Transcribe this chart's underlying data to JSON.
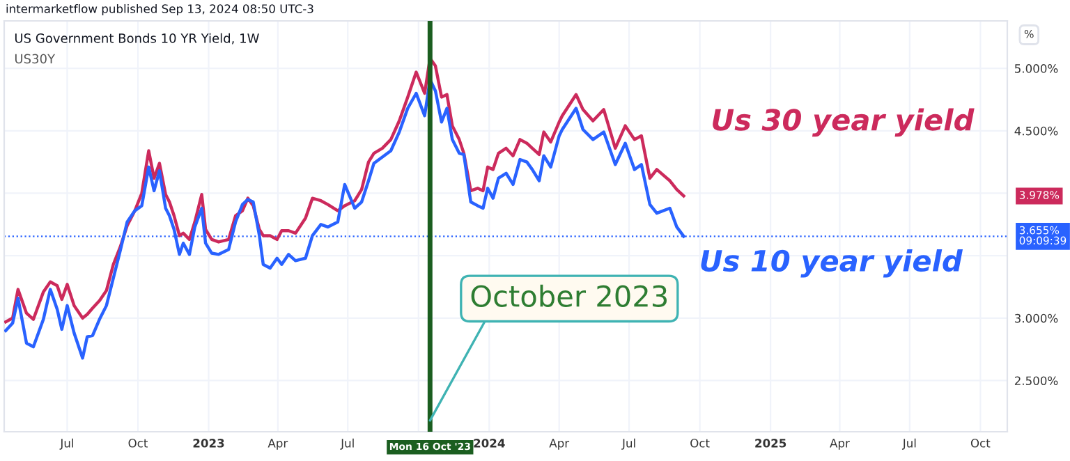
{
  "chart_data": {
    "type": "line",
    "title": "US Government Bonds 10 YR Yield, 1W",
    "subtitle": "US30Y",
    "x": [
      "2022-04-12",
      "2022-04-21",
      "2022-04-28",
      "2022-05-09",
      "2022-05-18",
      "2022-05-31",
      "2022-06-09",
      "2022-06-18",
      "2022-06-24",
      "2022-07-01",
      "2022-07-10",
      "2022-07-21",
      "2022-07-27",
      "2022-08-03",
      "2022-08-12",
      "2022-08-21",
      "2022-08-30",
      "2022-09-08",
      "2022-09-17",
      "2022-09-27",
      "2022-10-06",
      "2022-10-15",
      "2022-10-22",
      "2022-10-29",
      "2022-11-06",
      "2022-11-11",
      "2022-11-17",
      "2022-11-24",
      "2022-11-29",
      "2022-12-07",
      "2022-12-14",
      "2022-12-23",
      "2022-12-28",
      "2023-01-05",
      "2023-01-14",
      "2023-01-27",
      "2023-02-05",
      "2023-02-14",
      "2023-02-21",
      "2023-02-28",
      "2023-03-08",
      "2023-03-13",
      "2023-03-22",
      "2023-03-31",
      "2023-04-06",
      "2023-04-15",
      "2023-04-24",
      "2023-05-07",
      "2023-05-16",
      "2023-05-27",
      "2023-06-05",
      "2023-06-18",
      "2023-06-27",
      "2023-07-10",
      "2023-07-19",
      "2023-07-28",
      "2023-08-04",
      "2023-08-15",
      "2023-08-26",
      "2023-09-06",
      "2023-09-17",
      "2023-09-28",
      "2023-10-09",
      "2023-10-16",
      "2023-10-23",
      "2023-10-31",
      "2023-11-07",
      "2023-11-14",
      "2023-11-23",
      "2023-11-29",
      "2023-12-08",
      "2023-12-17",
      "2023-12-24",
      "2023-12-30",
      "2024-01-06",
      "2024-01-13",
      "2024-01-23",
      "2024-02-01",
      "2024-02-10",
      "2024-02-19",
      "2024-02-26",
      "2024-03-06",
      "2024-03-12",
      "2024-03-21",
      "2024-04-01",
      "2024-04-05",
      "2024-04-23",
      "2024-05-02",
      "2024-05-15",
      "2024-05-29",
      "2024-06-13",
      "2024-06-26",
      "2024-07-08",
      "2024-07-17",
      "2024-07-28",
      "2024-08-06",
      "2024-08-23",
      "2024-09-01",
      "2024-09-10"
    ],
    "series": [
      {
        "name": "Us 30 year yield",
        "color": "#cc2a5c",
        "values": [
          2.97,
          3.0,
          3.23,
          3.04,
          2.99,
          3.21,
          3.29,
          3.26,
          3.15,
          3.27,
          3.1,
          3.0,
          3.03,
          3.08,
          3.14,
          3.22,
          3.43,
          3.57,
          3.74,
          3.86,
          4.0,
          4.34,
          4.12,
          4.24,
          3.99,
          3.93,
          3.82,
          3.66,
          3.68,
          3.63,
          3.77,
          3.99,
          3.71,
          3.63,
          3.61,
          3.63,
          3.82,
          3.86,
          3.96,
          3.9,
          3.71,
          3.66,
          3.66,
          3.63,
          3.7,
          3.7,
          3.68,
          3.8,
          3.96,
          3.94,
          3.91,
          3.86,
          3.9,
          3.94,
          4.03,
          4.25,
          4.32,
          4.36,
          4.43,
          4.58,
          4.77,
          4.97,
          4.8,
          5.08,
          5.02,
          4.77,
          4.79,
          4.54,
          4.43,
          4.32,
          4.02,
          4.04,
          4.02,
          4.21,
          4.19,
          4.32,
          4.36,
          4.3,
          4.43,
          4.4,
          4.36,
          4.31,
          4.49,
          4.41,
          4.57,
          4.62,
          4.79,
          4.67,
          4.58,
          4.67,
          4.36,
          4.54,
          4.43,
          4.46,
          4.12,
          4.19,
          4.1,
          4.03,
          3.978
        ]
      },
      {
        "name": "Us 10 year yield",
        "color": "#2962ff",
        "values": [
          2.9,
          2.96,
          3.16,
          2.8,
          2.77,
          2.99,
          3.23,
          3.07,
          2.91,
          3.1,
          2.88,
          2.68,
          2.85,
          2.86,
          2.99,
          3.1,
          3.32,
          3.54,
          3.77,
          3.86,
          3.9,
          4.21,
          4.02,
          4.18,
          3.88,
          3.82,
          3.71,
          3.51,
          3.6,
          3.51,
          3.73,
          3.88,
          3.6,
          3.52,
          3.51,
          3.55,
          3.77,
          3.91,
          3.95,
          3.93,
          3.66,
          3.43,
          3.4,
          3.48,
          3.43,
          3.51,
          3.46,
          3.48,
          3.66,
          3.75,
          3.73,
          3.77,
          4.07,
          3.88,
          3.93,
          4.1,
          4.24,
          4.29,
          4.34,
          4.49,
          4.68,
          4.8,
          4.62,
          4.91,
          4.82,
          4.57,
          4.68,
          4.43,
          4.32,
          4.31,
          3.93,
          3.9,
          3.88,
          4.04,
          3.96,
          4.12,
          4.16,
          4.07,
          4.27,
          4.25,
          4.19,
          4.1,
          4.3,
          4.21,
          4.46,
          4.51,
          4.68,
          4.51,
          4.43,
          4.49,
          4.23,
          4.4,
          4.19,
          4.23,
          3.91,
          3.84,
          3.88,
          3.73,
          3.655
        ]
      }
    ],
    "xlim": [
      "2022-04-10",
      "2025-11-05"
    ],
    "xticks": [
      {
        "value": "2022-07-01",
        "label": "Jul"
      },
      {
        "value": "2022-10-01",
        "label": "Oct"
      },
      {
        "value": "2023-01-01",
        "label": "2023"
      },
      {
        "value": "2023-04-01",
        "label": "Apr"
      },
      {
        "value": "2023-07-01",
        "label": "Jul"
      },
      {
        "value": "2023-10-01",
        "label": null
      },
      {
        "value": "2024-01-01",
        "label": "2024"
      },
      {
        "value": "2024-04-01",
        "label": "Apr"
      },
      {
        "value": "2024-07-01",
        "label": "Jul"
      },
      {
        "value": "2024-10-01",
        "label": "Oct"
      },
      {
        "value": "2025-01-01",
        "label": "2025"
      },
      {
        "value": "2025-04-01",
        "label": "Apr"
      },
      {
        "value": "2025-07-01",
        "label": "Jul"
      },
      {
        "value": "2025-10-01",
        "label": "Oct"
      }
    ],
    "ylim": [
      2.09,
      5.38
    ],
    "yticks": [
      {
        "value": 2.5,
        "label": "2.500%"
      },
      {
        "value": 3.0,
        "label": "3.000%"
      },
      {
        "value": 3.5,
        "label": null
      },
      {
        "value": 4.0,
        "label": null
      },
      {
        "value": 4.5,
        "label": "4.500%"
      },
      {
        "value": 5.0,
        "label": "5.000%"
      }
    ],
    "grid": true,
    "legend": false,
    "ref_lines": [
      {
        "axis": "x",
        "value": "2023-10-16",
        "label": "Mon 16 Oct '23",
        "color": "#1b5e20",
        "line_style": "solid"
      },
      {
        "axis": "y",
        "value": 3.655,
        "label": "3.655%\n09:09:39",
        "color": "#2962ff",
        "line_style": "dotted"
      }
    ],
    "annotations": [
      "intermarketflow published Sep 13, 2024 08:50 UTC-3",
      "%",
      "3.978%",
      {
        "text": "October 2023",
        "x": "2023-10-16",
        "y": 2.18
      }
    ]
  }
}
